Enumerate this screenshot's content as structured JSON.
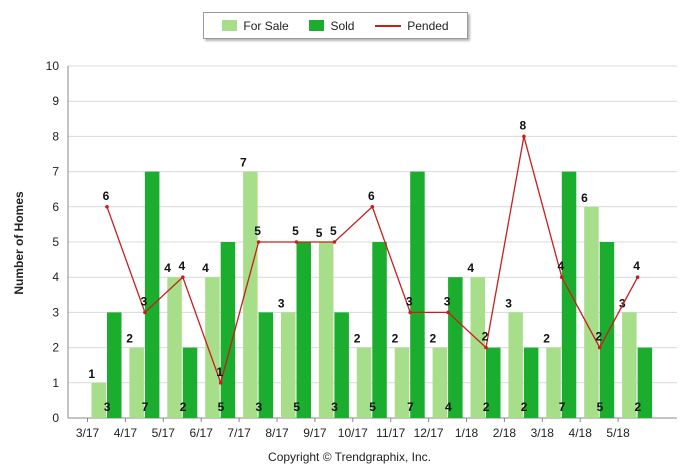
{
  "legend": {
    "for_sale": "For Sale",
    "sold": "Sold",
    "pended": "Pended"
  },
  "footer": {
    "copyright": "Copyright © Trendgraphix, Inc."
  },
  "colors": {
    "for_sale": "#a6de8a",
    "sold": "#1aad2e",
    "pended": "#c81e1e",
    "grid": "#d9d9d9",
    "axis": "#888888"
  },
  "chart_data": {
    "type": "bar",
    "categories": [
      "3/17",
      "4/17",
      "5/17",
      "6/17",
      "7/17",
      "8/17",
      "9/17",
      "10/17",
      "11/17",
      "12/17",
      "1/18",
      "2/18",
      "3/18",
      "4/18",
      "5/18"
    ],
    "series": [
      {
        "name": "For Sale",
        "type": "bar",
        "values": [
          1,
          2,
          4,
          4,
          7,
          3,
          5,
          2,
          2,
          2,
          4,
          3,
          2,
          6,
          3
        ]
      },
      {
        "name": "Sold",
        "type": "bar",
        "values": [
          3,
          7,
          2,
          5,
          3,
          5,
          3,
          5,
          7,
          4,
          2,
          2,
          7,
          5,
          2
        ]
      },
      {
        "name": "Pended",
        "type": "line",
        "values": [
          6,
          3,
          4,
          1,
          5,
          5,
          5,
          6,
          3,
          3,
          2,
          8,
          4,
          2,
          4
        ]
      }
    ],
    "ylabel": "Number of Homes",
    "xlabel": "",
    "ylim": [
      0,
      10
    ],
    "yticks": [
      0,
      1,
      2,
      3,
      4,
      5,
      6,
      7,
      8,
      9,
      10
    ],
    "grid": true,
    "legend_position": "top-center"
  }
}
